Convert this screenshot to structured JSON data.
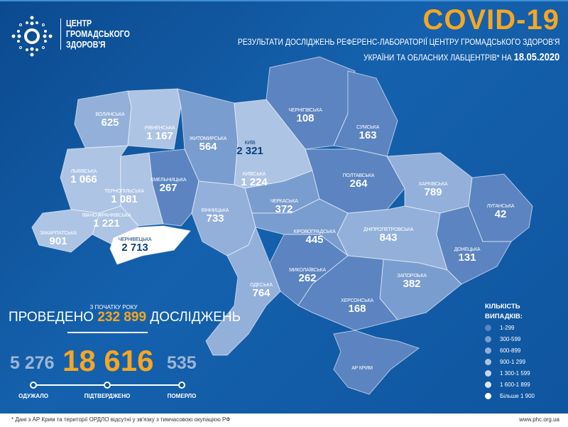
{
  "header": {
    "org": [
      "ЦЕНТР",
      "ГРОМАДСЬКОГО",
      "ЗДОРОВ'Я"
    ],
    "title": "COVID-19",
    "subtitle1": "РЕЗУЛЬТАТИ ДОСЛІДЖЕНЬ РЕФЕРЕНС-ЛАБОРАТОРІЇ ЦЕНТРУ ГРОМАДСЬКОГО ЗДОРОВ'Я",
    "subtitle2": "УКРАЇНИ ТА ОБЛАСНИХ ЛАБЦЕНТРІВ* НА ",
    "date": "18.05.2020"
  },
  "regions": [
    {
      "id": "volynska",
      "name": "Волинська",
      "cases": "625"
    },
    {
      "id": "rivnenska",
      "name": "Рівненська",
      "cases": "1 167"
    },
    {
      "id": "zhytomyrska",
      "name": "Житомирська",
      "cases": "564"
    },
    {
      "id": "kyiv",
      "name": "Київ",
      "cases": "2 321"
    },
    {
      "id": "chernihivska",
      "name": "Чернігівська",
      "cases": "108"
    },
    {
      "id": "sumska",
      "name": "Сумська",
      "cases": "163"
    },
    {
      "id": "lvivska",
      "name": "Львівська",
      "cases": "1 066"
    },
    {
      "id": "ternopilska",
      "name": "Тернопільська",
      "cases": "1 081"
    },
    {
      "id": "khmelnytska",
      "name": "Хмельницька",
      "cases": "267"
    },
    {
      "id": "kyivska",
      "name": "Київська",
      "cases": "1 224"
    },
    {
      "id": "cherkaska",
      "name": "Черкаська",
      "cases": "372"
    },
    {
      "id": "poltavska",
      "name": "Полтавська",
      "cases": "264"
    },
    {
      "id": "kharkivska",
      "name": "Харківська",
      "cases": "789"
    },
    {
      "id": "luhanska",
      "name": "Луганська",
      "cases": "42"
    },
    {
      "id": "ivanofrankivska",
      "name": "Івано-Франківська",
      "cases": "1 221"
    },
    {
      "id": "zakarpatska",
      "name": "Закарпатська",
      "cases": "901"
    },
    {
      "id": "chernivetska",
      "name": "Чернівецька",
      "cases": "2 713"
    },
    {
      "id": "vinnytska",
      "name": "Вінницька",
      "cases": "733"
    },
    {
      "id": "kirovohradska",
      "name": "Кіровоградська",
      "cases": "445"
    },
    {
      "id": "dnipropetrovska",
      "name": "Дніпропетровська",
      "cases": "843"
    },
    {
      "id": "donetska",
      "name": "Донецька",
      "cases": "131"
    },
    {
      "id": "odeska",
      "name": "Одеська",
      "cases": "764"
    },
    {
      "id": "mykolaivska",
      "name": "Миколаївська",
      "cases": "262"
    },
    {
      "id": "zaporizka",
      "name": "Запорізька",
      "cases": "382"
    },
    {
      "id": "khersonska",
      "name": "Херсонська",
      "cases": "168"
    },
    {
      "id": "crimea",
      "name": "АР Крим",
      "cases": ""
    }
  ],
  "stats": {
    "since": "З ПОЧАТКУ РОКУ",
    "tests_pre": "ПРОВЕДЕНО ",
    "tests": "232 899",
    "tests_post": " ДОСЛІДЖЕНЬ",
    "recovered": "5 276",
    "confirmed": "18 616",
    "deaths": "535",
    "recovered_label": "ОДУЖАЛО",
    "confirmed_label": "ПІДТВЕРДЖЕНО",
    "deaths_label": "ПОМЕРЛО"
  },
  "legend": {
    "title1": "КІЛЬКІСТЬ",
    "title2": "ВИПАДКІВ:",
    "items": [
      {
        "label": "1-299",
        "min": 1,
        "max": 299,
        "color": "#5b84c1"
      },
      {
        "label": "300-599",
        "min": 300,
        "max": 599,
        "color": "#7a9dcf"
      },
      {
        "label": "600-899",
        "min": 600,
        "max": 899,
        "color": "#93b0da"
      },
      {
        "label": "900-1 299",
        "min": 900,
        "max": 1299,
        "color": "#adc4e4"
      },
      {
        "label": "1 300-1 599",
        "min": 1300,
        "max": 1599,
        "color": "#c6d6ee"
      },
      {
        "label": "1 600-1 899",
        "min": 1600,
        "max": 1899,
        "color": "#dde7f5"
      },
      {
        "label": "Більше 1 900",
        "min": 1900,
        "max": 999999,
        "color": "#ffffff"
      }
    ]
  },
  "colors": {
    "accent": "#f5a623",
    "crimea": "#5b84c1"
  },
  "footer": {
    "note": "* Дані з АР Крим та території ОРДЛО відсутні у зв'язку з тимчасовою окупацією РФ",
    "url": "www.phc.org.ua"
  }
}
